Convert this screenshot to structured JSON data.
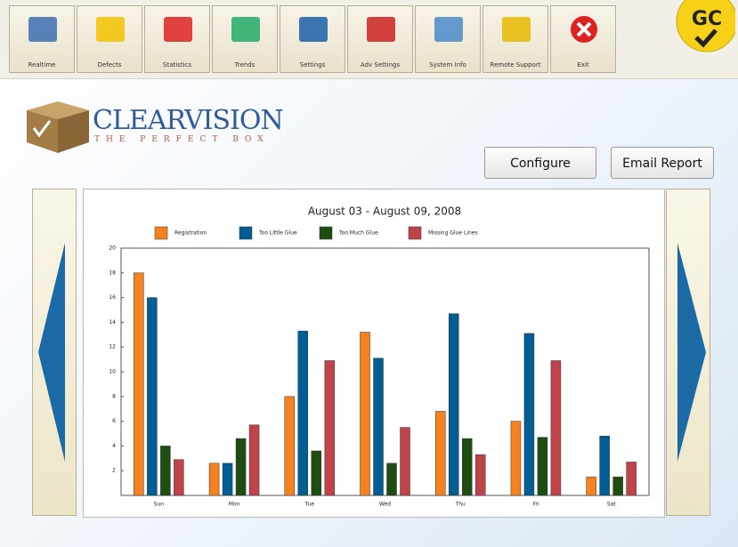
{
  "toolbar": {
    "buttons": [
      "Realtime",
      "Defects",
      "Statistics",
      "Trends",
      "Settings",
      "Adv Settings",
      "System Info",
      "Remote Support",
      "Exit"
    ]
  },
  "badge": "GC",
  "logo": {
    "name": "CLEARVISION",
    "tagline": "THE PERFECT BOX"
  },
  "actions": [
    "Configure",
    "Email Report"
  ],
  "chart_data": {
    "type": "bar",
    "title": "August 03 - August 09, 2008",
    "categories": [
      "Sun",
      "Mon",
      "Tue",
      "Wed",
      "Thu",
      "Fri",
      "Sat"
    ],
    "series": [
      {
        "name": "Registration",
        "color": "#f5821f",
        "values": [
          18,
          2.6,
          8,
          13.2,
          6.8,
          6,
          1.5
        ]
      },
      {
        "name": "Too Little Glue",
        "color": "#005e94",
        "values": [
          16,
          2.6,
          13.3,
          11.1,
          14.7,
          13.1,
          4.8
        ]
      },
      {
        "name": "Too Much Glue",
        "color": "#1e4d12",
        "values": [
          4,
          4.6,
          3.6,
          2.6,
          4.6,
          4.7,
          1.5
        ]
      },
      {
        "name": "Missing Glue Lines",
        "color": "#c0434a",
        "values": [
          2.9,
          5.7,
          10.9,
          5.5,
          3.3,
          10.9,
          2.7
        ]
      }
    ],
    "ylim": [
      0,
      20
    ],
    "yticks": [
      2,
      4,
      6,
      8,
      10,
      12,
      14,
      16,
      18,
      20
    ],
    "legend": "top"
  }
}
